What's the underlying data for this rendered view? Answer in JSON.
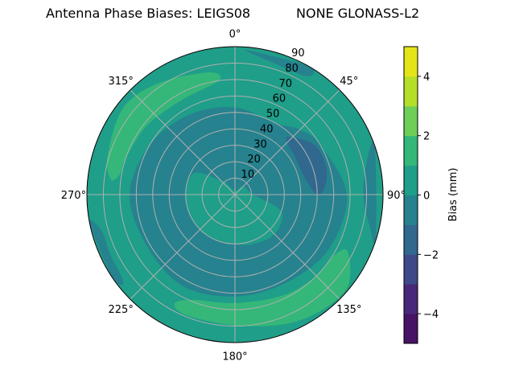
{
  "chart_data": {
    "type": "polar-contour",
    "title_left": "Antenna Phase Biases: LEIGS08",
    "title_right": "NONE GLONASS-L2",
    "theta_direction": "clockwise",
    "theta_zero": "top",
    "theta_tick_labels": [
      "0°",
      "45°",
      "90°",
      "135°",
      "180°",
      "225°",
      "270°",
      "315°"
    ],
    "theta_ticks": [
      0,
      45,
      90,
      135,
      180,
      225,
      270,
      315
    ],
    "r_ticks": [
      10,
      20,
      30,
      40,
      50,
      60,
      70,
      80,
      90
    ],
    "r_tick_labels": [
      "10",
      "20",
      "30",
      "40",
      "50",
      "60",
      "70",
      "80",
      "90"
    ],
    "r_range": [
      0,
      90
    ],
    "grid": true,
    "background_level": [
      0,
      1
    ],
    "colorbar": {
      "label": "Bias (mm)",
      "range": [
        -5,
        5
      ],
      "levels": [
        -5,
        -4,
        -3,
        -2,
        -1,
        0,
        1,
        2,
        3,
        4,
        5
      ],
      "colors": [
        "#471365",
        "#482878",
        "#3e4989",
        "#31688e",
        "#26828e",
        "#1f9e89",
        "#35b779",
        "#6ece58",
        "#b5de2b",
        "#e5e419"
      ],
      "ticks": [
        -4,
        -2,
        0,
        2,
        4
      ],
      "tick_labels": [
        "−4",
        "−2",
        "0",
        "2",
        "4"
      ]
    },
    "regions": [
      {
        "level": [
          -1,
          0
        ],
        "points": [
          [
            0,
            53
          ],
          [
            30,
            50
          ],
          [
            45,
            56
          ],
          [
            60,
            60
          ],
          [
            90,
            68
          ],
          [
            120,
            66
          ],
          [
            150,
            62
          ],
          [
            180,
            62
          ],
          [
            210,
            64
          ],
          [
            240,
            62
          ],
          [
            270,
            64
          ],
          [
            300,
            60
          ],
          [
            330,
            56
          ]
        ]
      },
      {
        "level": [
          0,
          1
        ],
        "points": [
          [
            0,
            2
          ],
          [
            45,
            7
          ],
          [
            90,
            11
          ],
          [
            110,
            30
          ],
          [
            135,
            34
          ],
          [
            160,
            32
          ],
          [
            180,
            30
          ],
          [
            210,
            30
          ],
          [
            240,
            30
          ],
          [
            270,
            30
          ],
          [
            298,
            28
          ],
          [
            315,
            12
          ],
          [
            330,
            5
          ]
        ]
      },
      {
        "level": [
          -2,
          -1
        ],
        "points": [
          [
            43,
            48
          ],
          [
            58,
            57
          ],
          [
            73,
            58
          ],
          [
            85,
            55
          ],
          [
            90,
            50
          ],
          [
            78,
            44
          ],
          [
            59,
            43
          ],
          [
            45,
            45
          ]
        ]
      },
      {
        "level": [
          1,
          2
        ],
        "points": [
          [
            277,
            76
          ],
          [
            287,
            81
          ],
          [
            308,
            86
          ],
          [
            326,
            82
          ],
          [
            348,
            76
          ],
          [
            352,
            70
          ],
          [
            331,
            66
          ],
          [
            308,
            68
          ],
          [
            288,
            70
          ],
          [
            280,
            71
          ]
        ]
      },
      {
        "level": [
          1,
          2
        ],
        "points": [
          [
            209,
            76
          ],
          [
            201,
            79
          ],
          [
            177,
            80
          ],
          [
            153,
            86
          ],
          [
            131,
            89
          ],
          [
            117,
            77
          ],
          [
            121,
            71
          ],
          [
            135,
            70
          ],
          [
            154,
            68
          ],
          [
            180,
            66
          ],
          [
            202,
            69
          ]
        ]
      },
      {
        "level": [
          -1,
          0
        ],
        "points": [
          [
            5,
            88
          ],
          [
            30,
            90
          ],
          [
            31,
            84
          ],
          [
            14,
            84
          ]
        ]
      },
      {
        "level": [
          -1,
          0
        ],
        "points": [
          [
            71,
            90
          ],
          [
            108,
            90
          ],
          [
            103,
            84
          ],
          [
            90,
            78
          ],
          [
            74,
            84
          ]
        ]
      },
      {
        "level": [
          -1,
          0
        ],
        "points": [
          [
            259,
            90
          ],
          [
            236,
            90
          ],
          [
            232,
            86
          ],
          [
            245,
            84
          ],
          [
            255,
            84
          ]
        ]
      }
    ]
  }
}
